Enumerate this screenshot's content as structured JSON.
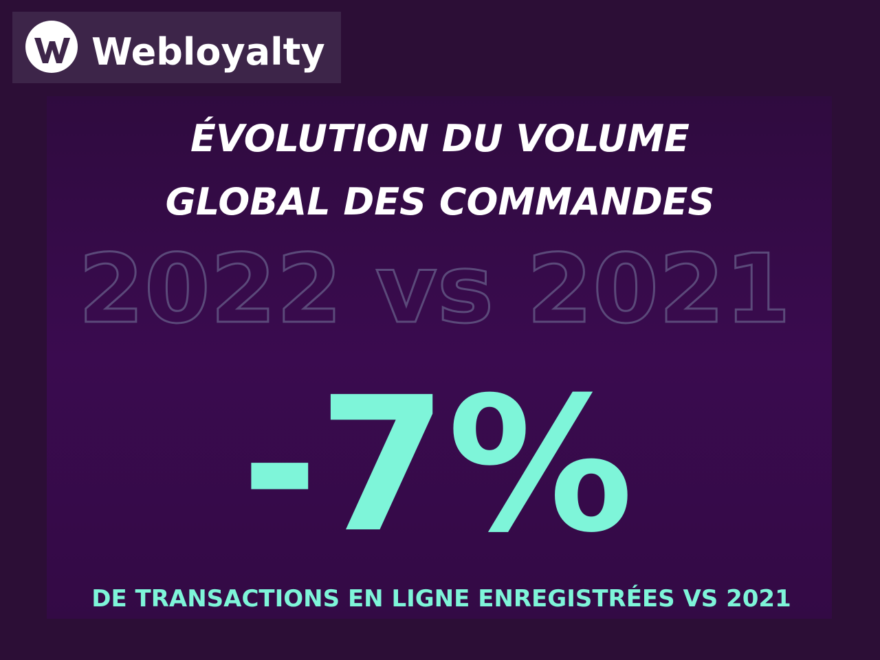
{
  "logo": {
    "brand": "Webloyalty"
  },
  "header": {
    "title_lines": [
      "ÉVOLUTION DU VOLUME",
      "GLOBAL DES COMMANDES"
    ],
    "comparison": "2022 vs 2021"
  },
  "highlight": {
    "figure": "-7%",
    "caption": "DE TRANSACTIONS EN LIGNE ENREGISTRÉES VS 2021"
  }
}
